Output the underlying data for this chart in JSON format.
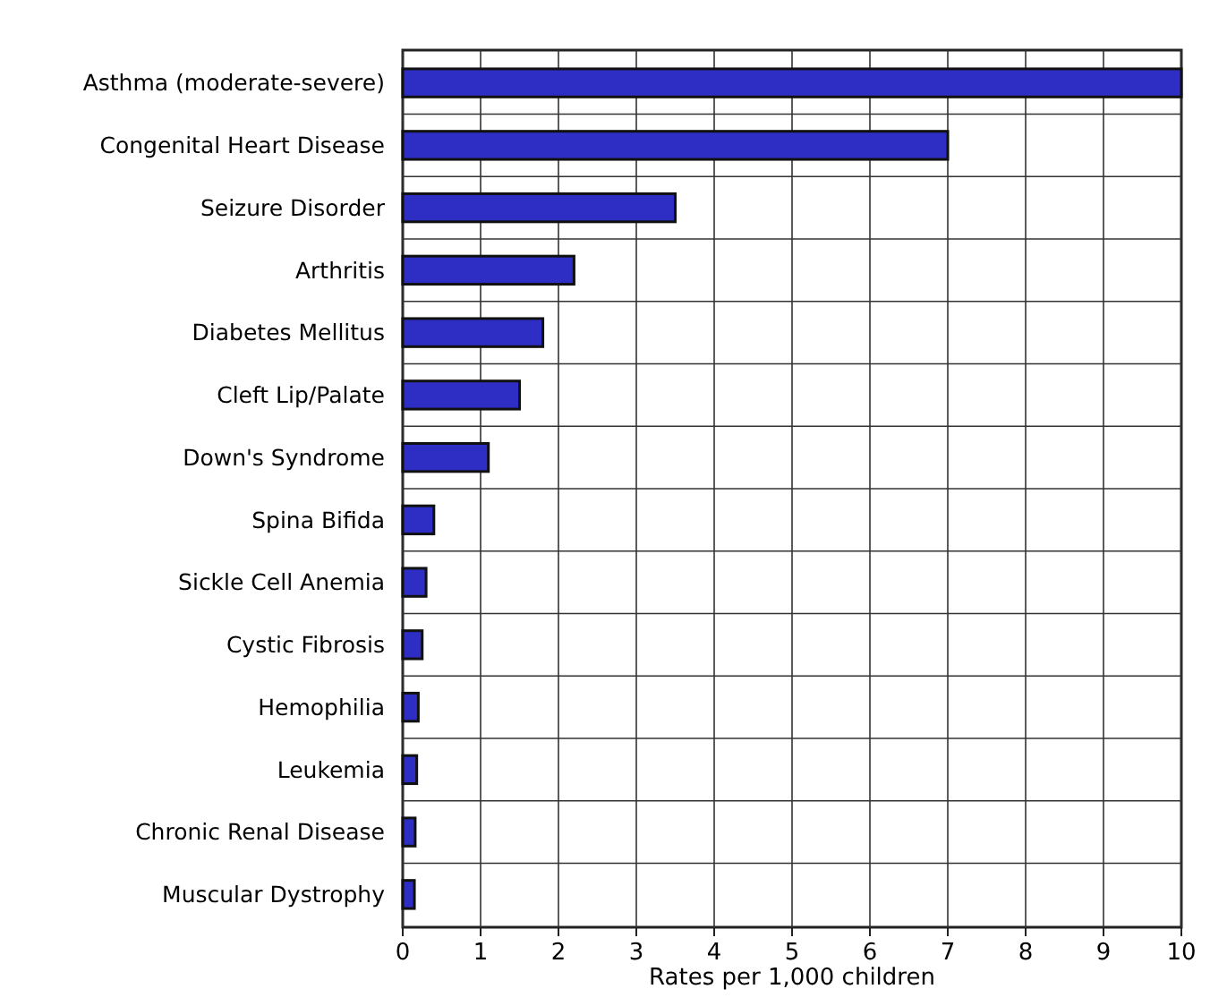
{
  "chart_data": {
    "type": "bar",
    "orientation": "horizontal",
    "xlabel": "Rates per 1,000 children",
    "categories": [
      "Asthma (moderate-severe)",
      "Congenital Heart Disease",
      "Seizure Disorder",
      "Arthritis",
      "Diabetes Mellitus",
      "Cleft Lip/Palate",
      "Down's Syndrome",
      "Spina Bifida",
      "Sickle Cell Anemia",
      "Cystic Fibrosis",
      "Hemophilia",
      "Leukemia",
      "Chronic Renal Disease",
      "Muscular Dystrophy"
    ],
    "values": [
      10,
      7,
      3.5,
      2.2,
      1.8,
      1.5,
      1.1,
      0.4,
      0.3,
      0.25,
      0.2,
      0.18,
      0.16,
      0.15
    ],
    "color": "#2e2ec4",
    "xlim": [
      0,
      10
    ],
    "xticks": [
      0,
      1,
      2,
      3,
      4,
      5,
      6,
      7,
      8,
      9,
      10
    ],
    "grid": true
  }
}
